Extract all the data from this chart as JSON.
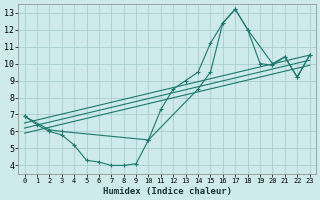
{
  "background_color": "#ceeaea",
  "grid_color": "#aacfcf",
  "line_color": "#1a7a6e",
  "xlabel": "Humidex (Indice chaleur)",
  "xlim": [
    -0.5,
    23.5
  ],
  "ylim": [
    3.5,
    13.5
  ],
  "xticks": [
    0,
    1,
    2,
    3,
    4,
    5,
    6,
    7,
    8,
    9,
    10,
    11,
    12,
    13,
    14,
    15,
    16,
    17,
    18,
    19,
    20,
    21,
    22,
    23
  ],
  "yticks": [
    4,
    5,
    6,
    7,
    8,
    9,
    10,
    11,
    12,
    13
  ],
  "series_main_x": [
    0,
    1,
    2,
    3,
    4,
    5,
    6,
    7,
    8,
    9,
    10,
    11,
    12,
    13,
    14,
    15,
    16,
    17,
    18,
    19,
    20,
    21,
    22,
    23
  ],
  "series_main_y": [
    6.9,
    6.4,
    6.0,
    5.8,
    5.2,
    4.3,
    4.2,
    4.0,
    4.0,
    4.1,
    5.5,
    7.3,
    8.5,
    9.0,
    9.5,
    11.2,
    12.4,
    13.2,
    12.0,
    10.0,
    9.9,
    10.4,
    9.2,
    10.5
  ],
  "series_curve_x": [
    0,
    2,
    3,
    10,
    14,
    15,
    16,
    17,
    18,
    20,
    21,
    22,
    23
  ],
  "series_curve_y": [
    6.9,
    6.1,
    6.0,
    5.5,
    8.5,
    9.5,
    12.4,
    13.2,
    12.0,
    10.0,
    10.4,
    9.2,
    10.5
  ],
  "series_line1_x": [
    0,
    23
  ],
  "series_line1_y": [
    6.5,
    10.5
  ],
  "series_line2_x": [
    0,
    23
  ],
  "series_line2_y": [
    6.2,
    10.2
  ],
  "series_line3_x": [
    0,
    23
  ],
  "series_line3_y": [
    5.9,
    9.9
  ]
}
